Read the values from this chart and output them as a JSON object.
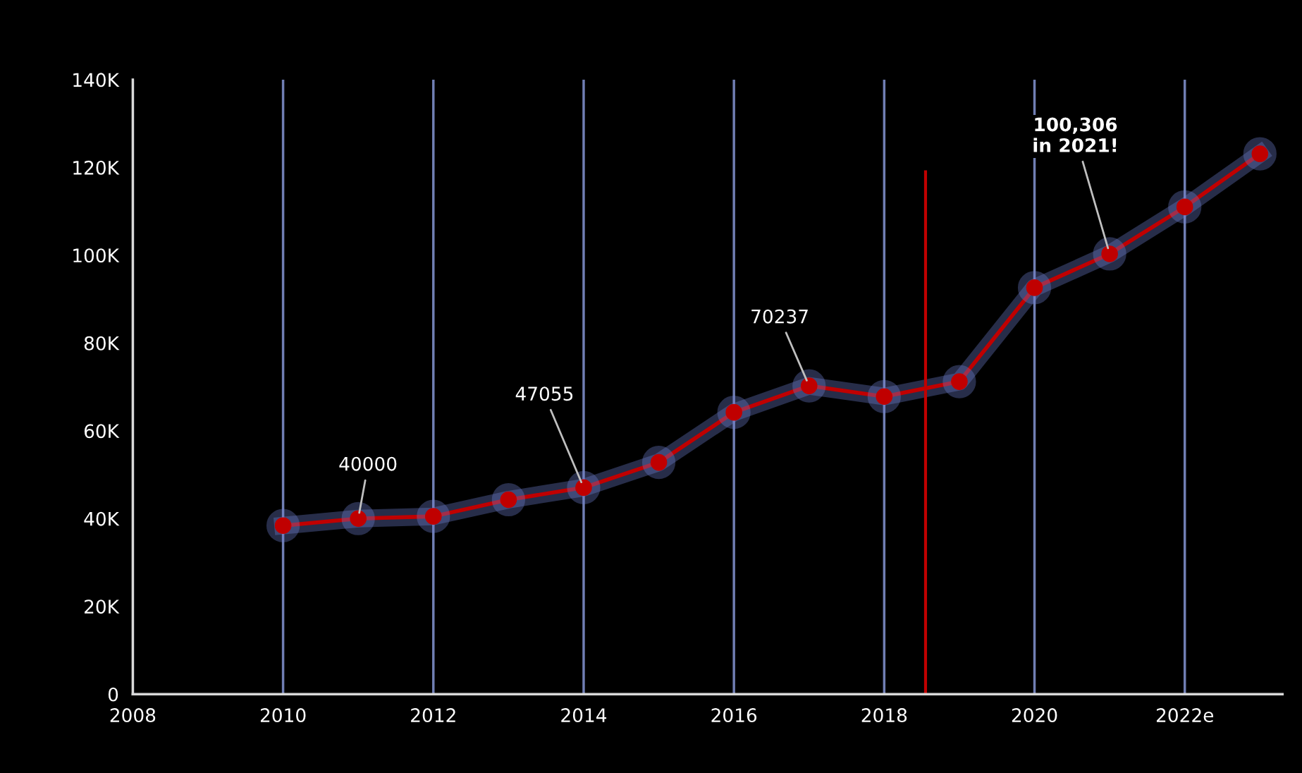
{
  "chart_data": {
    "type": "line",
    "x": [
      2010,
      2011,
      2012,
      2013,
      2014,
      2015,
      2016,
      2017,
      2018,
      2019,
      2020,
      2021,
      2022,
      2023
    ],
    "series": [
      {
        "color": "#c00000",
        "values": [
          38400,
          40000,
          40500,
          44300,
          47055,
          52800,
          64200,
          70237,
          67800,
          71200,
          92600,
          100306,
          111000,
          123100
        ]
      }
    ],
    "xlim": [
      2008,
      2023.3
    ],
    "xticks": [
      2008,
      2010,
      2012,
      2014,
      2016,
      2018,
      2020,
      {
        "value": 2022,
        "label": "2022e"
      }
    ],
    "ylim": [
      0,
      140000
    ],
    "yticks": [
      {
        "value": 0,
        "label": "0"
      },
      {
        "value": 20000,
        "label": "20K"
      },
      {
        "value": 40000,
        "label": "40K"
      },
      {
        "value": 60000,
        "label": "60K"
      },
      {
        "value": 80000,
        "label": "80K"
      },
      {
        "value": 100000,
        "label": "100K"
      },
      {
        "value": 120000,
        "label": "120K"
      },
      {
        "value": 140000,
        "label": "140K"
      }
    ],
    "grid": "x",
    "marker": "circle",
    "line_style": "solid",
    "ref_lines": [
      {
        "axis": "x",
        "value": 2018.55,
        "color": "#c00000"
      }
    ],
    "annotations": [
      {
        "text": "40000",
        "x": 2011,
        "y": 40000
      },
      {
        "text": "47055",
        "x": 2014,
        "y": 47055
      },
      {
        "text": "70237",
        "x": 2017,
        "y": 70237
      },
      {
        "text": "100,306\nin 2021!",
        "x": 2021,
        "y": 100306
      }
    ]
  }
}
